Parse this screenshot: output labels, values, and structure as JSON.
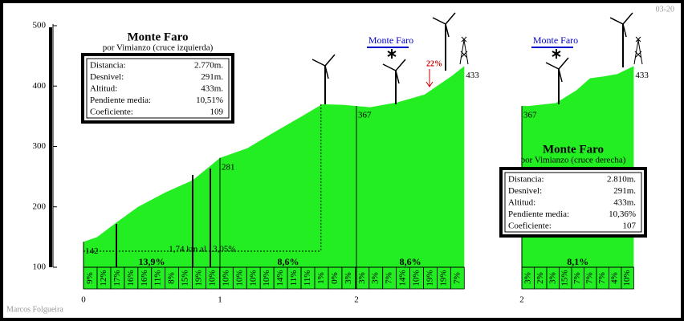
{
  "chart_data": [
    {
      "type": "area",
      "title": "Monte Faro",
      "subtitle": "por Vimianzo (cruce izquierda)",
      "x": [
        0,
        0.1,
        0.24,
        0.4,
        0.6,
        0.8,
        0.93,
        1.0,
        1.2,
        1.4,
        1.6,
        1.75,
        1.9,
        2.0,
        2.1,
        2.3,
        2.5,
        2.7,
        2.79
      ],
      "values": [
        142,
        150,
        174,
        200,
        224,
        244,
        268,
        281,
        297,
        324,
        350,
        370,
        369,
        367,
        365,
        373,
        386,
        417,
        433
      ],
      "color": "#22ee22",
      "xlim": [
        0,
        2.8
      ],
      "xticks": [
        0,
        1,
        2
      ],
      "ylim": [
        100,
        500
      ],
      "yticks": [
        100,
        200,
        300,
        400,
        500
      ],
      "grades": {
        "values": [
          9,
          12,
          17,
          16,
          16,
          11,
          8,
          15,
          19,
          10,
          10,
          10,
          10,
          10,
          14,
          11,
          11,
          1,
          0,
          3,
          3,
          3,
          7,
          14,
          10,
          19,
          19,
          7
        ],
        "value_labels": [
          "9%",
          "12%",
          "17%",
          "16%",
          "16%",
          "11%",
          "8%",
          "15%",
          "19%",
          "10%",
          "10%",
          "10%",
          "10%",
          "10%",
          "14%",
          "11%",
          "11%",
          "1%",
          "0%",
          "3%",
          "3%",
          "3%",
          "7%",
          "14%",
          "10%",
          "19%",
          "19%",
          "7%"
        ]
      },
      "sections": [
        {
          "label": "13,9%",
          "from": 0,
          "to": 1
        },
        {
          "label": "8,6%",
          "from": 1,
          "to": 2
        },
        {
          "label": "8,6%",
          "from": 2,
          "to": 2.79
        }
      ],
      "point_labels": [
        {
          "x": 0,
          "value": 142
        },
        {
          "x": 1.0,
          "value": 281
        },
        {
          "x": 2.0,
          "value": 367
        },
        {
          "x": 2.79,
          "value": 433
        }
      ],
      "ramp": {
        "label": "1,74 km al 13,05%",
        "from": 0,
        "to": 1.74
      },
      "stats": [
        [
          "Distancia:",
          "2.770m."
        ],
        [
          "Desnivel:",
          "291m."
        ],
        [
          "Altitud:",
          "433m."
        ],
        [
          "Pendiente media:",
          "10,51%"
        ],
        [
          "Coeficiente:",
          "109"
        ]
      ],
      "link": "Monte Faro",
      "peak_grade": "22%",
      "date": "03-20",
      "author": "Marcos Folgueira"
    },
    {
      "type": "area",
      "title": "Monte Faro",
      "subtitle": "por Vimianzo (cruce derecha)",
      "x": [
        2,
        2.05,
        2.25,
        2.4,
        2.5,
        2.6,
        2.7,
        2.82
      ],
      "values": [
        367,
        367,
        372,
        393,
        413,
        416,
        420,
        433
      ],
      "color": "#22ee22",
      "xlim": [
        2,
        2.82
      ],
      "xticks": [
        2
      ],
      "grades": {
        "values": [
          3,
          2,
          3,
          15,
          7,
          7,
          7,
          4,
          10
        ],
        "value_labels": [
          "3%",
          "2%",
          "3%",
          "15%",
          "7%",
          "7%",
          "7%",
          "4%",
          "10%"
        ]
      },
      "sections": [
        {
          "label": "8,1%",
          "from": 2,
          "to": 2.82
        }
      ],
      "point_labels": [
        {
          "x": 2,
          "value": 367
        },
        {
          "x": 2.82,
          "value": 433
        }
      ],
      "stats": [
        [
          "Distancia:",
          "2.810m."
        ],
        [
          "Desnivel:",
          "291m."
        ],
        [
          "Altitud:",
          "433m."
        ],
        [
          "Pendiente media:",
          "10,36%"
        ],
        [
          "Coeficiente:",
          "107"
        ]
      ],
      "link": "Monte Faro"
    }
  ]
}
